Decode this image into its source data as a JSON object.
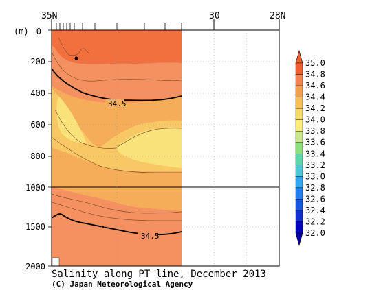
{
  "chart_data": {
    "type": "contour",
    "title": "Salinity along PT line, December 2013",
    "credit": "(C) Japan Meteorological Agency",
    "y_unit_label": "(m)",
    "x_axis": {
      "ticks": [
        {
          "value": 35,
          "label": "35N"
        },
        {
          "value": 30,
          "label": "30"
        },
        {
          "value": 28,
          "label": "28N"
        }
      ],
      "range": [
        35,
        28
      ],
      "data_extent": [
        35,
        30.5
      ]
    },
    "y_axis": {
      "upper": {
        "range": [
          0,
          1000
        ],
        "ticks": [
          "0",
          "200",
          "400",
          "600",
          "800",
          "1000"
        ]
      },
      "lower": {
        "range": [
          1000,
          2000
        ],
        "ticks": [
          "1500",
          "2000"
        ]
      }
    },
    "highlighted_isohaline": "34.5",
    "colorbar": {
      "levels": [
        "35.0",
        "34.8",
        "34.6",
        "34.4",
        "34.2",
        "34.0",
        "33.8",
        "33.6",
        "33.4",
        "33.2",
        "33.0",
        "32.8",
        "32.6",
        "32.4",
        "32.2",
        "32.0"
      ],
      "colors": [
        "#f06030",
        "#f48450",
        "#f5a04e",
        "#f7c058",
        "#f8d968",
        "#f9ec7a",
        "#c8e88a",
        "#90e080",
        "#5ed8a8",
        "#4cc8d8",
        "#32a8f0",
        "#2080f0",
        "#1458e0",
        "#1030d0",
        "#0000c0"
      ]
    },
    "band_colors": {
      "s348": "#f2703e",
      "s346": "#f59160",
      "s344": "#f6ad5a",
      "s342": "#f8c865",
      "s340": "#f9e27a"
    }
  }
}
